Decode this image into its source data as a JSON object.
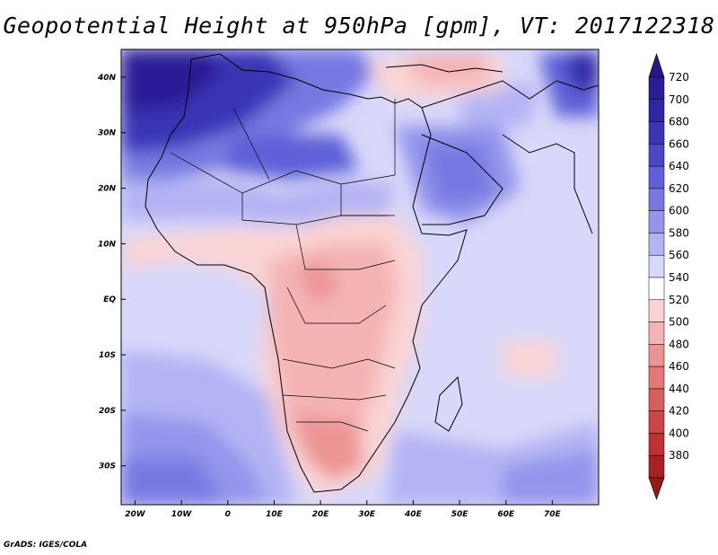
{
  "title": "Geopotential Height at 950hPa [gpm], VT: 2017122318",
  "credit": "GrADS: IGES/COLA",
  "map": {
    "lon_range": [
      -23,
      80
    ],
    "lat_range": [
      -37,
      45
    ],
    "lon_ticks": [
      {
        "value": -20,
        "label": "20W"
      },
      {
        "value": -10,
        "label": "10W"
      },
      {
        "value": 0,
        "label": "0"
      },
      {
        "value": 10,
        "label": "10E"
      },
      {
        "value": 20,
        "label": "20E"
      },
      {
        "value": 30,
        "label": "30E"
      },
      {
        "value": 40,
        "label": "40E"
      },
      {
        "value": 50,
        "label": "50E"
      },
      {
        "value": 60,
        "label": "60E"
      },
      {
        "value": 70,
        "label": "70E"
      }
    ],
    "lat_ticks": [
      {
        "value": 40,
        "label": "40N"
      },
      {
        "value": 30,
        "label": "30N"
      },
      {
        "value": 20,
        "label": "20N"
      },
      {
        "value": 10,
        "label": "10N"
      },
      {
        "value": 0,
        "label": "EQ"
      },
      {
        "value": -10,
        "label": "10S"
      },
      {
        "value": -20,
        "label": "20S"
      },
      {
        "value": -30,
        "label": "30S"
      }
    ]
  },
  "colorbar": {
    "levels": [
      {
        "label": "720",
        "color": "#2a1e96"
      },
      {
        "label": "700",
        "color": "#3026a4"
      },
      {
        "label": "680",
        "color": "#3a34b6"
      },
      {
        "label": "660",
        "color": "#4a48c8"
      },
      {
        "label": "640",
        "color": "#5f60d8"
      },
      {
        "label": "620",
        "color": "#7878e2"
      },
      {
        "label": "600",
        "color": "#9494ec"
      },
      {
        "label": "580",
        "color": "#b4b4f4"
      },
      {
        "label": "560",
        "color": "#d8d8fa"
      },
      {
        "label": "540",
        "color": "#ffffff"
      },
      {
        "label": "520",
        "color": "#fad4d4"
      },
      {
        "label": "500",
        "color": "#f4b4b4"
      },
      {
        "label": "480",
        "color": "#ec9494"
      },
      {
        "label": "460",
        "color": "#e27878"
      },
      {
        "label": "440",
        "color": "#d85e5e"
      },
      {
        "label": "420",
        "color": "#cc4646"
      },
      {
        "label": "400",
        "color": "#be3232"
      },
      {
        "label": "380",
        "color": "#a82222"
      }
    ],
    "top_color": "#241888",
    "bottom_color": "#961818"
  }
}
